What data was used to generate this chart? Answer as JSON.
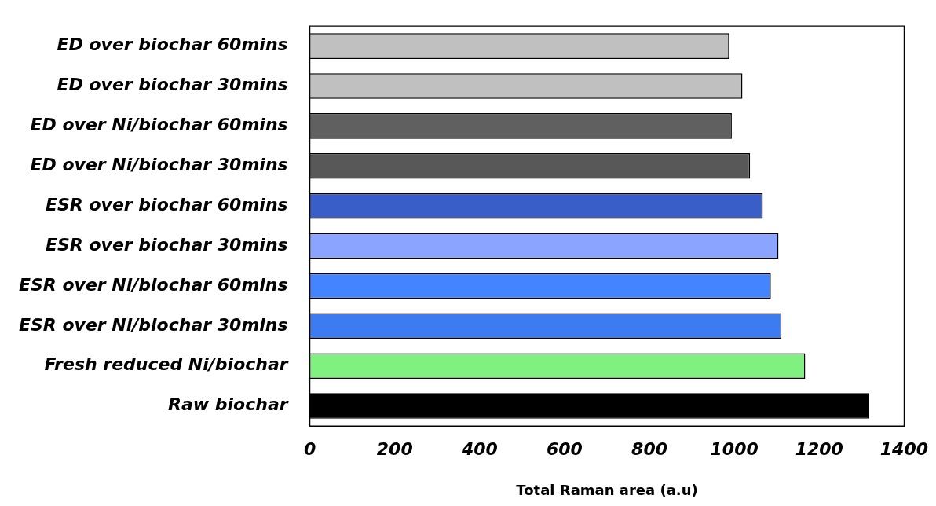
{
  "chart_data": {
    "type": "bar",
    "orientation": "horizontal",
    "xlabel": "Total Raman area (a.u)",
    "categories": [
      "ED over biochar 60mins",
      "ED over biochar 30mins",
      "ED over Ni/biochar 60mins",
      "ED over Ni/biochar 30mins",
      "ESR over biochar 60mins",
      "ESR over biochar 30mins",
      "ESR over Ni/biochar 60mins",
      "ESR over Ni/biochar 30mins",
      "Fresh reduced Ni/biochar",
      "Raw biochar"
    ],
    "values": [
      988,
      1019,
      994,
      1037,
      1067,
      1104,
      1086,
      1111,
      1167,
      1318
    ],
    "colors": [
      "#c0c0c0",
      "#c0c0c0",
      "#606060",
      "#585858",
      "#3a5ec8",
      "#8aa4ff",
      "#4484ff",
      "#3d7cf0",
      "#80f080",
      "#000000"
    ],
    "xlim": [
      0,
      1400
    ],
    "xticks": [
      0,
      200,
      400,
      600,
      800,
      1000,
      1200,
      1400
    ],
    "grid": false,
    "legend": false
  }
}
